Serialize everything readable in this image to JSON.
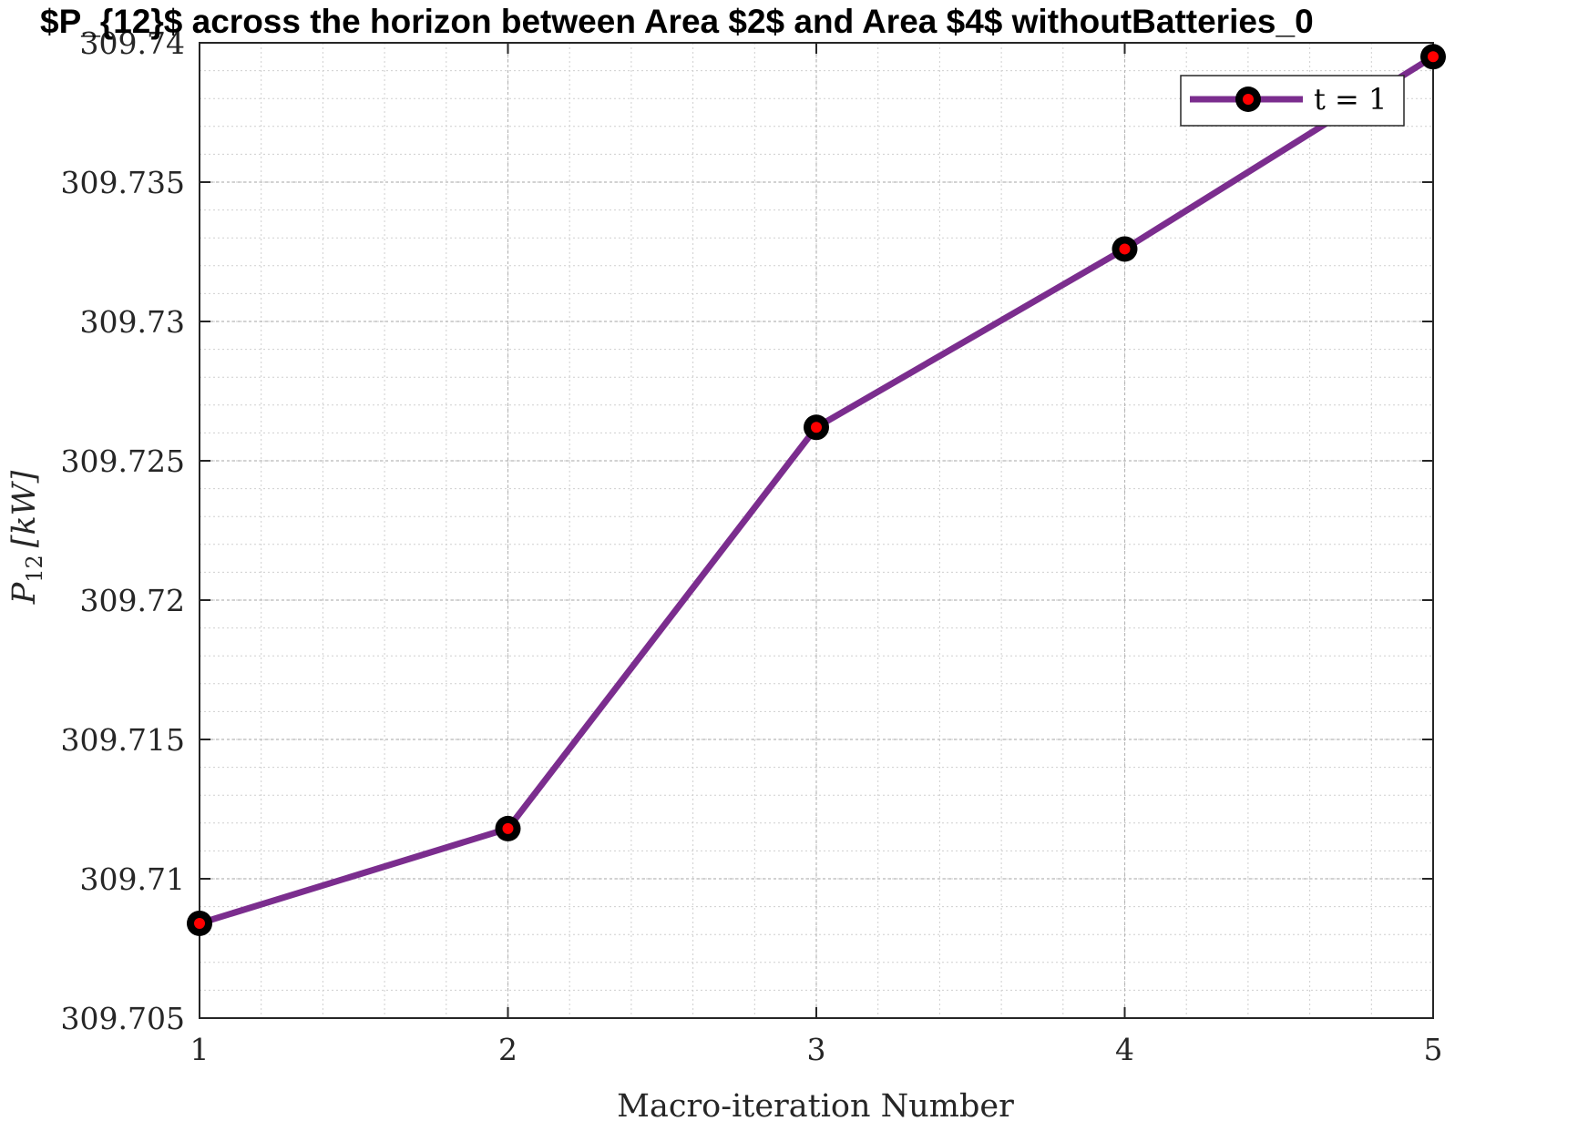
{
  "chart_data": {
    "type": "line",
    "title": "$P_{12}$ across the horizon between Area $2$ and Area $4$ withoutBatteries_0",
    "xlabel": "Macro-iteration Number",
    "ylabel_main": "P",
    "ylabel_sub": "12",
    "ylabel_unit": "[kW]",
    "xlim": [
      1,
      5
    ],
    "ylim": [
      309.705,
      309.74
    ],
    "x_ticks": [
      1,
      2,
      3,
      4,
      5
    ],
    "x_tick_labels": [
      "1",
      "2",
      "3",
      "4",
      "5"
    ],
    "y_ticks": [
      309.705,
      309.71,
      309.715,
      309.72,
      309.725,
      309.73,
      309.735,
      309.74
    ],
    "y_tick_labels": [
      "309.705",
      "309.71",
      "309.715",
      "309.72",
      "309.725",
      "309.73",
      "309.735",
      "309.74"
    ],
    "grid": true,
    "minor_grid": true,
    "legend_position": "top-right",
    "series": [
      {
        "name": "t = 1",
        "x": [
          1,
          2,
          3,
          4,
          5
        ],
        "y": [
          309.7084,
          309.7118,
          309.7262,
          309.7326,
          309.7395
        ],
        "line_color": "#7b2d8e",
        "marker_edge_color": "#000000",
        "marker_face_color": "#ff0000"
      }
    ]
  }
}
